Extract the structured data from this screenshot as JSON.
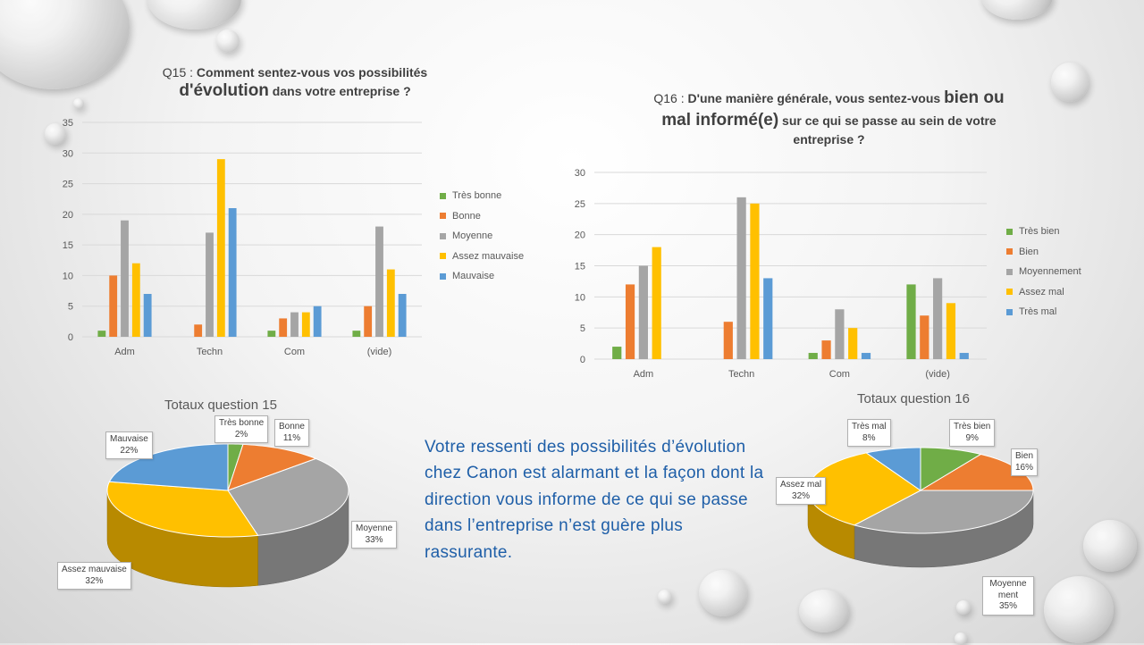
{
  "colors": {
    "green": "#70ad47",
    "orange": "#ed7d31",
    "gray": "#a5a5a5",
    "yellow": "#ffc000",
    "blue": "#5b9bd5"
  },
  "q15": {
    "title_prefix": "Q15 : ",
    "title_part1": "Comment sentez-vous vos possibilités",
    "title_bold": "d'évolution",
    "title_part2": " dans votre entreprise ?"
  },
  "q16": {
    "title_prefix": "Q16 : ",
    "title_part1": "D'une manière générale, vous sentez-vous ",
    "title_bold1": "bien ou",
    "title_bold2": "mal informé(e)",
    "title_part2": " sur ce qui se passe au sein de votre",
    "title_part3": "entreprise ?"
  },
  "pie15_title": "Totaux question 15",
  "pie16_title": "Totaux question 16",
  "message": "Votre ressenti des possibilités d’évolution chez Canon est alarmant et la façon dont la direction vous informe de ce qui se passe dans l’entreprise n’est guère plus rassurante.",
  "chart_data": [
    {
      "type": "bar",
      "title": "Q15 : Comment sentez-vous vos possibilités d'évolution dans votre entreprise ?",
      "categories": [
        "Adm",
        "Techn",
        "Com",
        "(vide)"
      ],
      "ylim": [
        0,
        35
      ],
      "yticks": [
        0,
        5,
        10,
        15,
        20,
        25,
        30,
        35
      ],
      "grid": true,
      "legend": "right",
      "series": [
        {
          "name": "Très bonne",
          "color": "#70ad47",
          "values": [
            1,
            0,
            1,
            1
          ]
        },
        {
          "name": "Bonne",
          "color": "#ed7d31",
          "values": [
            10,
            2,
            3,
            5
          ]
        },
        {
          "name": "Moyenne",
          "color": "#a5a5a5",
          "values": [
            19,
            17,
            4,
            18
          ]
        },
        {
          "name": "Assez mauvaise",
          "color": "#ffc000",
          "values": [
            12,
            29,
            4,
            11
          ]
        },
        {
          "name": "Mauvaise",
          "color": "#5b9bd5",
          "values": [
            7,
            21,
            5,
            7
          ]
        }
      ]
    },
    {
      "type": "bar",
      "title": "Q16 : D'une manière générale, vous sentez-vous bien ou mal informé(e) sur ce qui se passe au sein de votre entreprise ?",
      "categories": [
        "Adm",
        "Techn",
        "Com",
        "(vide)"
      ],
      "ylim": [
        0,
        30
      ],
      "yticks": [
        0,
        5,
        10,
        15,
        20,
        25,
        30
      ],
      "grid": true,
      "legend": "right",
      "series": [
        {
          "name": "Très bien",
          "color": "#70ad47",
          "values": [
            2,
            0,
            1,
            12
          ]
        },
        {
          "name": "Bien",
          "color": "#ed7d31",
          "values": [
            12,
            6,
            3,
            7
          ]
        },
        {
          "name": "Moyennement",
          "color": "#a5a5a5",
          "values": [
            15,
            26,
            8,
            13
          ]
        },
        {
          "name": "Assez mal",
          "color": "#ffc000",
          "values": [
            18,
            25,
            5,
            9
          ]
        },
        {
          "name": "Très mal",
          "color": "#5b9bd5",
          "values": [
            0,
            13,
            1,
            1
          ]
        }
      ]
    },
    {
      "type": "pie",
      "title": "Totaux question 15",
      "slices": [
        {
          "name": "Très bonne",
          "pct_label": "2%",
          "value": 2,
          "color": "#70ad47"
        },
        {
          "name": "Bonne",
          "pct_label": "11%",
          "value": 11,
          "color": "#ed7d31"
        },
        {
          "name": "Moyenne",
          "pct_label": "33%",
          "value": 33,
          "color": "#a5a5a5"
        },
        {
          "name": "Assez mauvaise",
          "pct_label": "32%",
          "value": 32,
          "color": "#ffc000"
        },
        {
          "name": "Mauvaise",
          "pct_label": "22%",
          "value": 22,
          "color": "#5b9bd5"
        }
      ]
    },
    {
      "type": "pie",
      "title": "Totaux question 16",
      "slices": [
        {
          "name": "Très bien",
          "pct_label": "9%",
          "value": 9,
          "color": "#70ad47"
        },
        {
          "name": "Bien",
          "pct_label": "16%",
          "value": 16,
          "color": "#ed7d31"
        },
        {
          "name": "Moyennement",
          "pct_label": "35%",
          "value": 35,
          "color": "#a5a5a5"
        },
        {
          "name": "Assez mal",
          "pct_label": "32%",
          "value": 32,
          "color": "#ffc000"
        },
        {
          "name": "Très mal",
          "pct_label": "8%",
          "value": 8,
          "color": "#5b9bd5"
        }
      ]
    }
  ]
}
